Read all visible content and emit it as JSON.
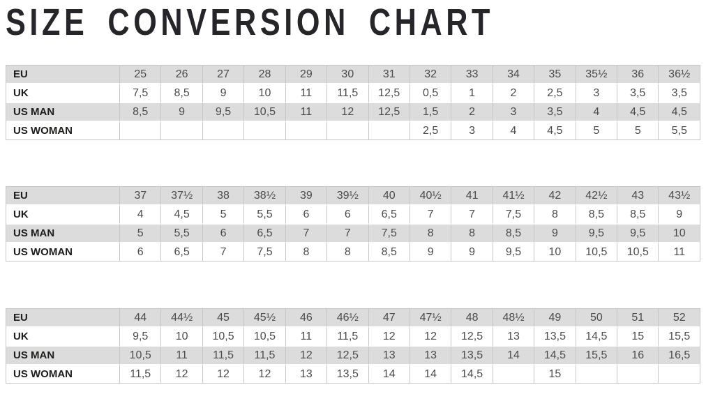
{
  "title": "SIZE CONVERSION CHART",
  "colors": {
    "title_text": "#26262a",
    "shaded_row": "#dcdcdc",
    "plain_row": "#ffffff",
    "grid_border": "#c6c6c6",
    "label_text": "#1d1d1b",
    "value_text": "#4b4b49"
  },
  "chart_data": {
    "type": "table",
    "title": "SIZE CONVERSION CHART",
    "row_headers": [
      "EU",
      "UK",
      "US MAN",
      "US WOMAN"
    ],
    "decimal_separator": ",",
    "segments": [
      {
        "rows": [
          [
            "25",
            "26",
            "27",
            "28",
            "29",
            "30",
            "31",
            "32",
            "33",
            "34",
            "35",
            "35½",
            "36",
            "36½"
          ],
          [
            "7,5",
            "8,5",
            "9",
            "10",
            "11",
            "11,5",
            "12,5",
            "0,5",
            "1",
            "2",
            "2,5",
            "3",
            "3,5",
            "3,5"
          ],
          [
            "8,5",
            "9",
            "9,5",
            "10,5",
            "11",
            "12",
            "12,5",
            "1,5",
            "2",
            "3",
            "3,5",
            "4",
            "4,5",
            "4,5"
          ],
          [
            "",
            "",
            "",
            "",
            "",
            "",
            "",
            "2,5",
            "3",
            "4",
            "4,5",
            "5",
            "5",
            "5,5"
          ]
        ]
      },
      {
        "rows": [
          [
            "37",
            "37½",
            "38",
            "38½",
            "39",
            "39½",
            "40",
            "40½",
            "41",
            "41½",
            "42",
            "42½",
            "43",
            "43½"
          ],
          [
            "4",
            "4,5",
            "5",
            "5,5",
            "6",
            "6",
            "6,5",
            "7",
            "7",
            "7,5",
            "8",
            "8,5",
            "8,5",
            "9"
          ],
          [
            "5",
            "5,5",
            "6",
            "6,5",
            "7",
            "7",
            "7,5",
            "8",
            "8",
            "8,5",
            "9",
            "9,5",
            "9,5",
            "10"
          ],
          [
            "6",
            "6,5",
            "7",
            "7,5",
            "8",
            "8",
            "8,5",
            "9",
            "9",
            "9,5",
            "10",
            "10,5",
            "10,5",
            "11"
          ]
        ]
      },
      {
        "rows": [
          [
            "44",
            "44½",
            "45",
            "45½",
            "46",
            "46½",
            "47",
            "47½",
            "48",
            "48½",
            "49",
            "50",
            "51",
            "52"
          ],
          [
            "9,5",
            "10",
            "10,5",
            "10,5",
            "11",
            "11,5",
            "12",
            "12",
            "12,5",
            "13",
            "13,5",
            "14,5",
            "15",
            "15,5"
          ],
          [
            "10,5",
            "11",
            "11,5",
            "11,5",
            "12",
            "12,5",
            "13",
            "13",
            "13,5",
            "14",
            "14,5",
            "15,5",
            "16",
            "16,5"
          ],
          [
            "11,5",
            "12",
            "12",
            "12",
            "13",
            "13,5",
            "14",
            "14",
            "14,5",
            "",
            "15",
            "",
            "",
            ""
          ]
        ]
      }
    ]
  }
}
